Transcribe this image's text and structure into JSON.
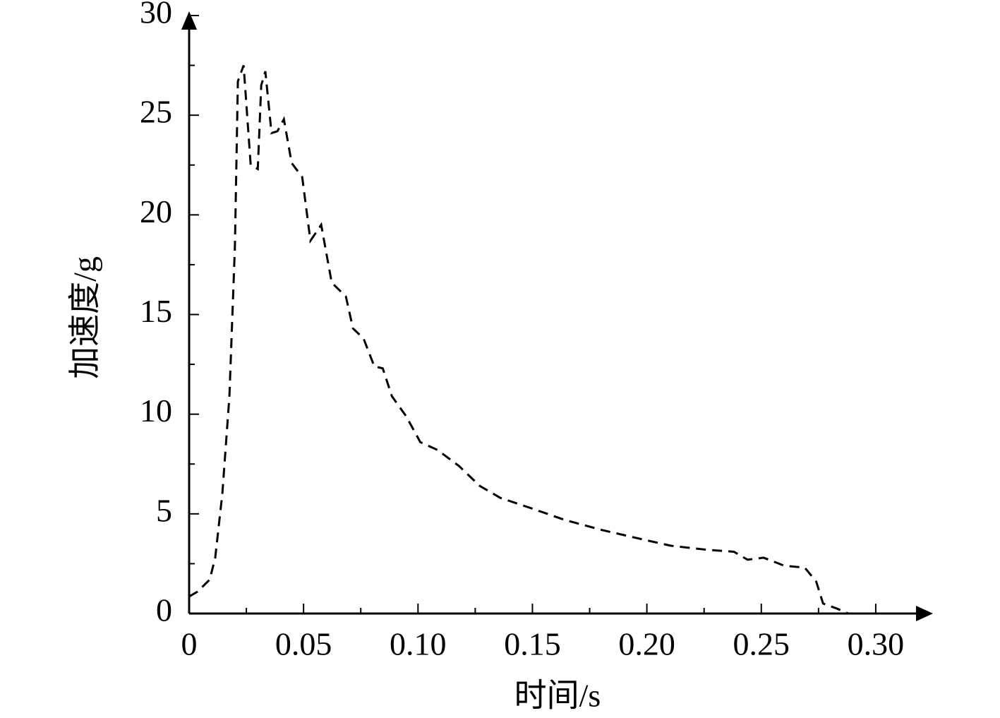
{
  "chart_data": {
    "type": "line",
    "x_label": "时间/s",
    "y_label": "加速度/g",
    "xlim": [
      0,
      0.325
    ],
    "ylim": [
      0,
      30
    ],
    "xticks": [
      0,
      0.05,
      {
        "value": 0.1,
        "label": "0.10"
      },
      0.15,
      {
        "value": 0.2,
        "label": "0.20"
      },
      0.25,
      {
        "value": 0.3,
        "label": "0.30"
      }
    ],
    "yticks": [
      0,
      5,
      10,
      15,
      20,
      25,
      30
    ],
    "series": [
      {
        "color": "#000000",
        "dash": true,
        "x": [
          0,
          0.0037,
          0.009,
          0.0114,
          0.0145,
          0.0176,
          0.02,
          0.0213,
          0.0238,
          0.0269,
          0.03,
          0.0315,
          0.0333,
          0.036,
          0.0386,
          0.0414,
          0.0448,
          0.0494,
          0.053,
          0.0577,
          0.0623,
          0.0685,
          0.0716,
          0.0762,
          0.0809,
          0.0846,
          0.0886,
          0.0948,
          0.101,
          0.1086,
          0.1179,
          0.127,
          0.136,
          0.149,
          0.164,
          0.18,
          0.195,
          0.2105,
          0.226,
          0.238,
          0.244,
          0.251,
          0.26,
          0.269,
          0.274,
          0.277,
          0.283,
          0.288
        ],
        "values": [
          0.85,
          1.1,
          1.7,
          2.8,
          6.0,
          10.9,
          18.4,
          26.7,
          27.5,
          22.5,
          22.3,
          26.5,
          27.2,
          24.1,
          24.2,
          24.8,
          22.6,
          21.9,
          18.7,
          19.5,
          16.6,
          15.9,
          14.3,
          13.8,
          12.4,
          12.3,
          10.9,
          9.9,
          8.6,
          8.2,
          7.4,
          6.4,
          5.8,
          5.3,
          4.7,
          4.2,
          3.8,
          3.4,
          3.2,
          3.1,
          2.7,
          2.8,
          2.4,
          2.3,
          1.6,
          0.5,
          0.25,
          0
        ]
      }
    ]
  }
}
